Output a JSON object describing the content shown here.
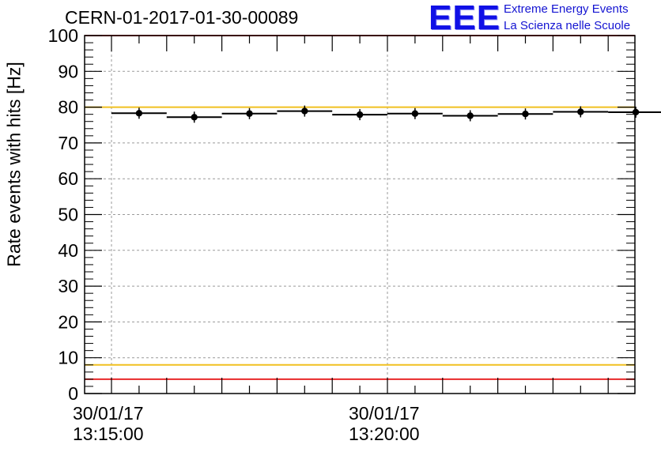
{
  "header": {
    "run_title": "CERN-01-2017-01-30-00089",
    "logo_mark": "EEE",
    "logo_line1": "Extreme Energy Events",
    "logo_line2": "La Scienza nelle Scuole"
  },
  "colors": {
    "threshold_red": "#e8282a",
    "threshold_yellow": "#f0c020",
    "logo_blue": "#1414d2"
  },
  "chart_data": {
    "type": "scatter",
    "ylabel": "Rate events with hits [Hz]",
    "ylim": [
      0,
      100
    ],
    "y_ticks": [
      "0",
      "10",
      "20",
      "30",
      "40",
      "50",
      "60",
      "70",
      "80",
      "90",
      "100"
    ],
    "x_tick_labels": [
      {
        "date": "30/01/17",
        "time": "13:15:00"
      },
      {
        "date": "30/01/17",
        "time": "13:20:00"
      }
    ],
    "grid": true,
    "series": [
      {
        "x": [
          "13:15:00",
          "13:15:30",
          "13:16:00",
          "13:16:30",
          "13:17:00",
          "13:17:30",
          "13:18:00",
          "13:18:30",
          "13:19:00",
          "13:19:30",
          "13:20:00",
          "13:20:30",
          "13:21:00",
          "13:21:30",
          "13:22:00",
          "13:22:30",
          "13:23:00",
          "13:23:30",
          "13:24:00",
          "13:24:30"
        ],
        "values": [
          78.3,
          78.3,
          77.2,
          77.2,
          78.2,
          78.2,
          78.9,
          78.9,
          77.9,
          77.9,
          78.2,
          78.2,
          77.6,
          77.6,
          78.1,
          78.1,
          78.7,
          78.7,
          78.6,
          78.6
        ],
        "marker_every": 2
      }
    ],
    "reference_lines": [
      {
        "value": 100,
        "color": "red"
      },
      {
        "value": 80,
        "color": "yellow"
      },
      {
        "value": 8,
        "color": "yellow"
      },
      {
        "value": 4,
        "color": "red"
      }
    ]
  }
}
